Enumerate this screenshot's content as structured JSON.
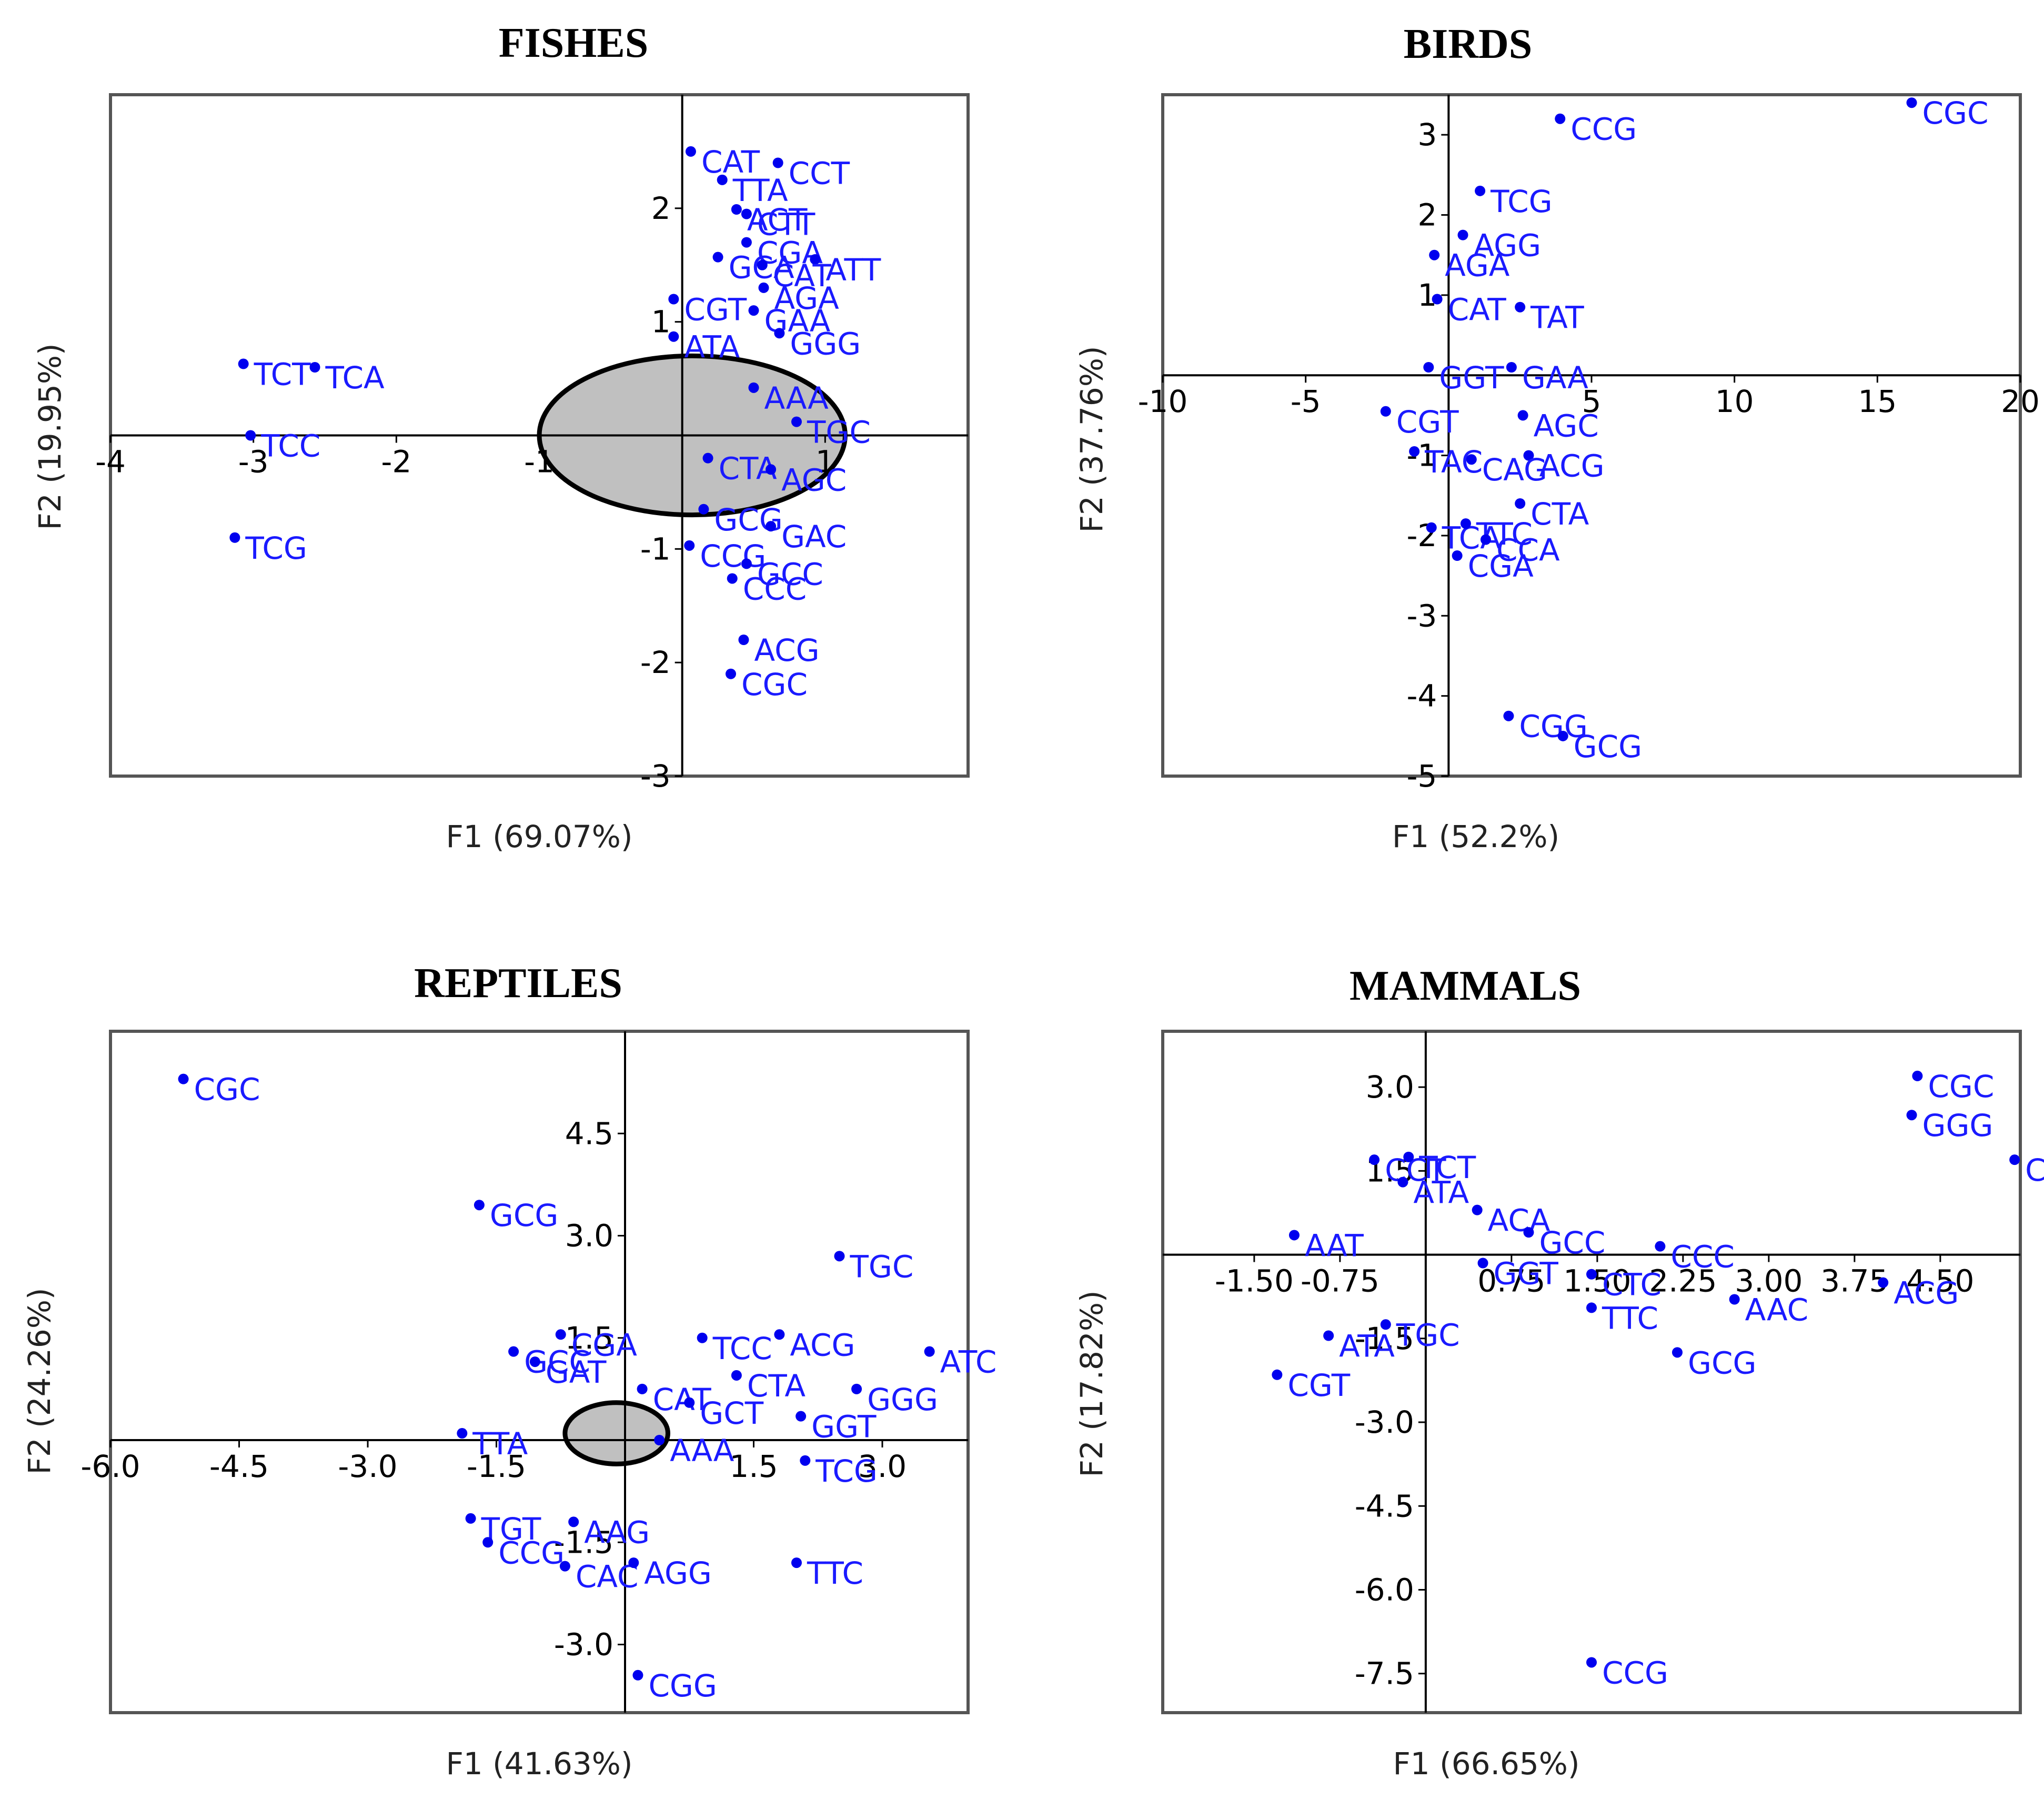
{
  "colors": {
    "point": "#0000ee",
    "label": "#1a1aff",
    "frame": "#555555",
    "axis": "#000000",
    "ellipse_fill": "#c0c0c0"
  },
  "chart_data": [
    {
      "type": "scatter",
      "title": "FISHES",
      "xlabel": "F1 (69.07%)",
      "ylabel": "F2 (19.95%)",
      "xlim": [
        -4,
        2
      ],
      "ylim": [
        -3,
        3
      ],
      "xticks": [
        {
          "v": -4,
          "t": "-4"
        },
        {
          "v": -3,
          "t": "-3"
        },
        {
          "v": -2,
          "t": "-2"
        },
        {
          "v": -1,
          "t": "-1"
        },
        {
          "v": 1,
          "t": "1"
        }
      ],
      "yticks": [
        {
          "v": 2,
          "t": "2"
        },
        {
          "v": 1,
          "t": "1"
        },
        {
          "v": -1,
          "t": "-1"
        },
        {
          "v": -2,
          "t": "-2"
        },
        {
          "v": -3,
          "t": "-3"
        }
      ],
      "ellipse": {
        "cx": 0.07,
        "cy": 0,
        "rx": 1.07,
        "ry": 0.7
      },
      "points": [
        {
          "label": "CAT",
          "x": 0.06,
          "y": 2.5
        },
        {
          "label": "CCT",
          "x": 0.67,
          "y": 2.4
        },
        {
          "label": "TTA",
          "x": 0.28,
          "y": 2.25
        },
        {
          "label": "ACT",
          "x": 0.38,
          "y": 1.99
        },
        {
          "label": "CTT",
          "x": 0.45,
          "y": 1.95
        },
        {
          "label": "CGA",
          "x": 0.45,
          "y": 1.7
        },
        {
          "label": "ATT",
          "x": 0.93,
          "y": 1.55
        },
        {
          "label": "GCA",
          "x": 0.25,
          "y": 1.57
        },
        {
          "label": "CAT",
          "x": 0.56,
          "y": 1.5
        },
        {
          "label": "AGA",
          "x": 0.57,
          "y": 1.3
        },
        {
          "label": "CGT",
          "x": -0.06,
          "y": 1.2
        },
        {
          "label": "GAA",
          "x": 0.5,
          "y": 1.1
        },
        {
          "label": "GGG",
          "x": 0.68,
          "y": 0.9
        },
        {
          "label": "ATA",
          "x": -0.06,
          "y": 0.87
        },
        {
          "label": "TCT",
          "x": -3.07,
          "y": 0.63
        },
        {
          "label": "TCA",
          "x": -2.57,
          "y": 0.6
        },
        {
          "label": "TCC",
          "x": -3.02,
          "y": 0.0
        },
        {
          "label": "TCG",
          "x": -3.13,
          "y": -0.9
        },
        {
          "label": "CTA",
          "x": 0.18,
          "y": -0.2
        },
        {
          "label": "GCG",
          "x": 0.15,
          "y": -0.65
        },
        {
          "label": "CCG",
          "x": 0.05,
          "y": -0.97
        },
        {
          "label": "CCC",
          "x": 0.35,
          "y": -1.26
        },
        {
          "label": "GCC",
          "x": 0.45,
          "y": -1.13
        },
        {
          "label": "ACG",
          "x": 0.43,
          "y": -1.8
        },
        {
          "label": "CGC",
          "x": 0.34,
          "y": -2.1
        },
        {
          "label": "GAC",
          "x": 0.62,
          "y": -0.8
        },
        {
          "label": "AAA",
          "x": 0.5,
          "y": 0.42
        },
        {
          "label": "TGC",
          "x": 0.8,
          "y": 0.12
        },
        {
          "label": "AGC",
          "x": 0.62,
          "y": -0.3
        }
      ]
    },
    {
      "type": "scatter",
      "title": "BIRDS",
      "xlabel": "F1 (52.2%)",
      "ylabel": "F2 (37.76%)",
      "xlim": [
        -10,
        20
      ],
      "ylim": [
        -5,
        3.5
      ],
      "xticks": [
        {
          "v": -10,
          "t": "-10"
        },
        {
          "v": -5,
          "t": "-5"
        },
        {
          "v": 5,
          "t": "5"
        },
        {
          "v": 10,
          "t": "10"
        },
        {
          "v": 15,
          "t": "15"
        },
        {
          "v": 20,
          "t": "20"
        }
      ],
      "yticks": [
        {
          "v": 3,
          "t": "3"
        },
        {
          "v": 2,
          "t": "2"
        },
        {
          "v": 1,
          "t": "1"
        },
        {
          "v": -1,
          "t": "-1"
        },
        {
          "v": -2,
          "t": "-2"
        },
        {
          "v": -3,
          "t": "-3"
        },
        {
          "v": -4,
          "t": "-4"
        },
        {
          "v": -5,
          "t": "-5"
        }
      ],
      "points": [
        {
          "label": "CGC",
          "x": 16.2,
          "y": 3.4
        },
        {
          "label": "CCG",
          "x": 3.9,
          "y": 3.2
        },
        {
          "label": "TCG",
          "x": 1.1,
          "y": 2.3
        },
        {
          "label": "AGG",
          "x": 0.5,
          "y": 1.75
        },
        {
          "label": "AGA",
          "x": -0.5,
          "y": 1.5
        },
        {
          "label": "CAT",
          "x": -0.4,
          "y": 0.95
        },
        {
          "label": "TAT",
          "x": 2.5,
          "y": 0.85
        },
        {
          "label": "GAA",
          "x": 2.2,
          "y": 0.1
        },
        {
          "label": "GGT",
          "x": -0.7,
          "y": 0.1
        },
        {
          "label": "CGT",
          "x": -2.2,
          "y": -0.45
        },
        {
          "label": "TAC",
          "x": -1.2,
          "y": -0.95
        },
        {
          "label": "AGC",
          "x": 2.6,
          "y": -0.5
        },
        {
          "label": "ACG",
          "x": 2.8,
          "y": -1.0
        },
        {
          "label": "CAG",
          "x": 0.8,
          "y": -1.05
        },
        {
          "label": "CTA",
          "x": 2.5,
          "y": -1.6
        },
        {
          "label": "TCA",
          "x": -0.6,
          "y": -1.9
        },
        {
          "label": "TTC",
          "x": 0.6,
          "y": -1.85
        },
        {
          "label": "CCA",
          "x": 1.3,
          "y": -2.05
        },
        {
          "label": "CGA",
          "x": 0.3,
          "y": -2.25
        },
        {
          "label": "CGG",
          "x": 2.1,
          "y": -4.25
        },
        {
          "label": "GCG",
          "x": 4.0,
          "y": -4.5
        }
      ]
    },
    {
      "type": "scatter",
      "title": "REPTILES",
      "xlabel": "F1 (41.63%)",
      "ylabel": "F2 (24.26%)",
      "xlim": [
        -6,
        4
      ],
      "ylim": [
        -4,
        6
      ],
      "xticks": [
        {
          "v": -6,
          "t": "-6.0"
        },
        {
          "v": -4.5,
          "t": "-4.5"
        },
        {
          "v": -3,
          "t": "-3.0"
        },
        {
          "v": -1.5,
          "t": "-1.5"
        },
        {
          "v": 1.5,
          "t": "1.5"
        },
        {
          "v": 3,
          "t": "3.0"
        }
      ],
      "yticks": [
        {
          "v": 4.5,
          "t": "4.5"
        },
        {
          "v": 3,
          "t": "3.0"
        },
        {
          "v": 1.5,
          "t": "1.5"
        },
        {
          "v": -1.5,
          "t": "-1.5"
        },
        {
          "v": -3,
          "t": "-3.0"
        }
      ],
      "ellipse": {
        "cx": -0.1,
        "cy": 0.1,
        "rx": 0.6,
        "ry": 0.45
      },
      "points": [
        {
          "label": "CGC",
          "x": -5.15,
          "y": 5.3
        },
        {
          "label": "GCG",
          "x": -1.7,
          "y": 3.45
        },
        {
          "label": "TGC",
          "x": 2.5,
          "y": 2.7
        },
        {
          "label": "CGA",
          "x": -0.75,
          "y": 1.55
        },
        {
          "label": "TCC",
          "x": 0.9,
          "y": 1.5
        },
        {
          "label": "ACG",
          "x": 1.8,
          "y": 1.55
        },
        {
          "label": "ATC",
          "x": 3.55,
          "y": 1.3
        },
        {
          "label": "GCC",
          "x": -1.3,
          "y": 1.3
        },
        {
          "label": "GAT",
          "x": -1.05,
          "y": 1.15
        },
        {
          "label": "CTA",
          "x": 1.3,
          "y": 0.95
        },
        {
          "label": "CAT",
          "x": 0.2,
          "y": 0.75
        },
        {
          "label": "GCT",
          "x": 0.75,
          "y": 0.55
        },
        {
          "label": "GGG",
          "x": 2.7,
          "y": 0.75
        },
        {
          "label": "GGT",
          "x": 2.05,
          "y": 0.35
        },
        {
          "label": "TTA",
          "x": -1.9,
          "y": 0.1
        },
        {
          "label": "AAA",
          "x": 0.4,
          "y": 0.0
        },
        {
          "label": "TCG",
          "x": 2.1,
          "y": -0.3
        },
        {
          "label": "TGT",
          "x": -1.8,
          "y": -1.15
        },
        {
          "label": "AAG",
          "x": -0.6,
          "y": -1.2
        },
        {
          "label": "CCG",
          "x": -1.6,
          "y": -1.5
        },
        {
          "label": "CAC",
          "x": -0.7,
          "y": -1.85
        },
        {
          "label": "AGG",
          "x": 0.1,
          "y": -1.8
        },
        {
          "label": "TTC",
          "x": 2.0,
          "y": -1.8
        },
        {
          "label": "CGG",
          "x": 0.15,
          "y": -3.45
        }
      ]
    },
    {
      "type": "scatter",
      "title": "MAMMALS",
      "xlabel": "F1 (66.65%)",
      "ylabel": "F2 (17.82%)",
      "xlim": [
        -2.3,
        5.2
      ],
      "ylim": [
        -8.2,
        4
      ],
      "xticks": [
        {
          "v": -1.5,
          "t": "-1.50"
        },
        {
          "v": -0.75,
          "t": "-0.75"
        },
        {
          "v": 0.75,
          "t": "0.75"
        },
        {
          "v": 1.5,
          "t": "1.50"
        },
        {
          "v": 2.25,
          "t": "2.25"
        },
        {
          "v": 3.0,
          "t": "3.00"
        },
        {
          "v": 3.75,
          "t": "3.75"
        },
        {
          "v": 4.5,
          "t": "4.50"
        }
      ],
      "yticks": [
        {
          "v": 3,
          "t": "3.0"
        },
        {
          "v": 1.5,
          "t": "1.5"
        },
        {
          "v": -1.5,
          "t": "-1.5"
        },
        {
          "v": -3,
          "t": "-3.0"
        },
        {
          "v": -4.5,
          "t": "-4.5"
        },
        {
          "v": -6,
          "t": "-6.0"
        },
        {
          "v": -7.5,
          "t": "-7.5"
        }
      ],
      "points": [
        {
          "label": "CGC",
          "x": 4.3,
          "y": 3.2
        },
        {
          "label": "GGG",
          "x": 4.25,
          "y": 2.5
        },
        {
          "label": "CGG",
          "x": 5.15,
          "y": 1.7
        },
        {
          "label": "CCT",
          "x": -0.45,
          "y": 1.7
        },
        {
          "label": "TCT",
          "x": -0.15,
          "y": 1.75
        },
        {
          "label": "ATA",
          "x": -0.2,
          "y": 1.3
        },
        {
          "label": "ACA",
          "x": 0.45,
          "y": 0.8
        },
        {
          "label": "AAT",
          "x": -1.15,
          "y": 0.35
        },
        {
          "label": "GCC",
          "x": 0.9,
          "y": 0.4
        },
        {
          "label": "CCC",
          "x": 2.05,
          "y": 0.15
        },
        {
          "label": "CTC",
          "x": 1.45,
          "y": -0.35
        },
        {
          "label": "TTC",
          "x": 1.45,
          "y": -0.95
        },
        {
          "label": "ACG",
          "x": 4.0,
          "y": -0.5
        },
        {
          "label": "AAC",
          "x": 2.7,
          "y": -0.8
        },
        {
          "label": "GCG",
          "x": 2.2,
          "y": -1.75
        },
        {
          "label": "ATA",
          "x": -0.85,
          "y": -1.45
        },
        {
          "label": "CGT",
          "x": -1.3,
          "y": -2.15
        },
        {
          "label": "TGC",
          "x": -0.35,
          "y": -1.25
        },
        {
          "label": "GGT",
          "x": 0.5,
          "y": -0.15
        },
        {
          "label": "CCG",
          "x": 1.45,
          "y": -7.3
        }
      ]
    }
  ]
}
